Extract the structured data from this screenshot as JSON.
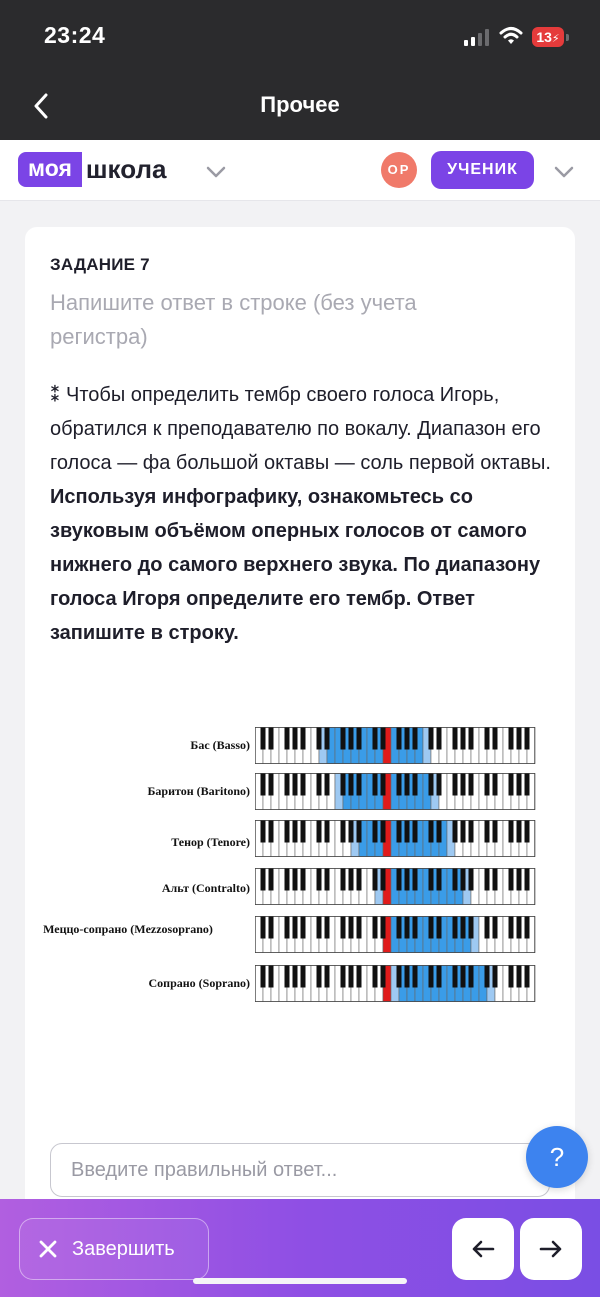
{
  "status_bar": {
    "time": "23:24",
    "battery": "13"
  },
  "nav": {
    "title": "Прочее"
  },
  "app_header": {
    "logo_part1": "моя",
    "logo_part2": "школа",
    "avatar_initials": "ОР",
    "role": "УЧЕНИК"
  },
  "task": {
    "title": "ЗАДАНИЕ 7",
    "instruction": "Напишите ответ в строке (без учета регистра)",
    "marker": "⁑",
    "text_plain": " Чтобы определить тембр своего голоса Игорь, обратился к преподавателю по вокалу. Диапазон его голоса — фа большой октавы — соль первой октавы. ",
    "text_bold": "Используя инфографику, ознакомьтесь со звуковым объёмом оперных голосов от самого нижнего до самого верхнего звука. По диапазону голоса Игоря определите его тембр. Ответ запишите в строку."
  },
  "infographic": {
    "highlight_colors": {
      "range": "#3a9ce8",
      "edge": "#9ec9f2",
      "middle_c": "#e01b1b"
    },
    "voices": [
      {
        "label": "Бас (Basso)",
        "range": [
          9,
          20
        ],
        "edges": [
          8,
          21
        ]
      },
      {
        "label": "Баритон (Baritono)",
        "range": [
          11,
          21
        ],
        "edges": [
          10,
          22
        ]
      },
      {
        "label": "Тенор (Tenore)",
        "range": [
          13,
          23
        ],
        "edges": [
          12,
          24
        ]
      },
      {
        "label": "Альт (Contralto)",
        "range": [
          16,
          25
        ],
        "edges": [
          15,
          26
        ]
      },
      {
        "label": "Меццо-сопрано (Mezzosoprano)",
        "range": [
          17,
          26
        ],
        "edges": [
          16,
          27
        ]
      },
      {
        "label": "Сопрано (Soprano)",
        "range": [
          18,
          28
        ],
        "edges": [
          17,
          29
        ]
      }
    ]
  },
  "answer": {
    "placeholder": "Введите правильный ответ...",
    "value": ""
  },
  "help": {
    "label": "?"
  },
  "footer": {
    "finish_label": "Завершить"
  }
}
